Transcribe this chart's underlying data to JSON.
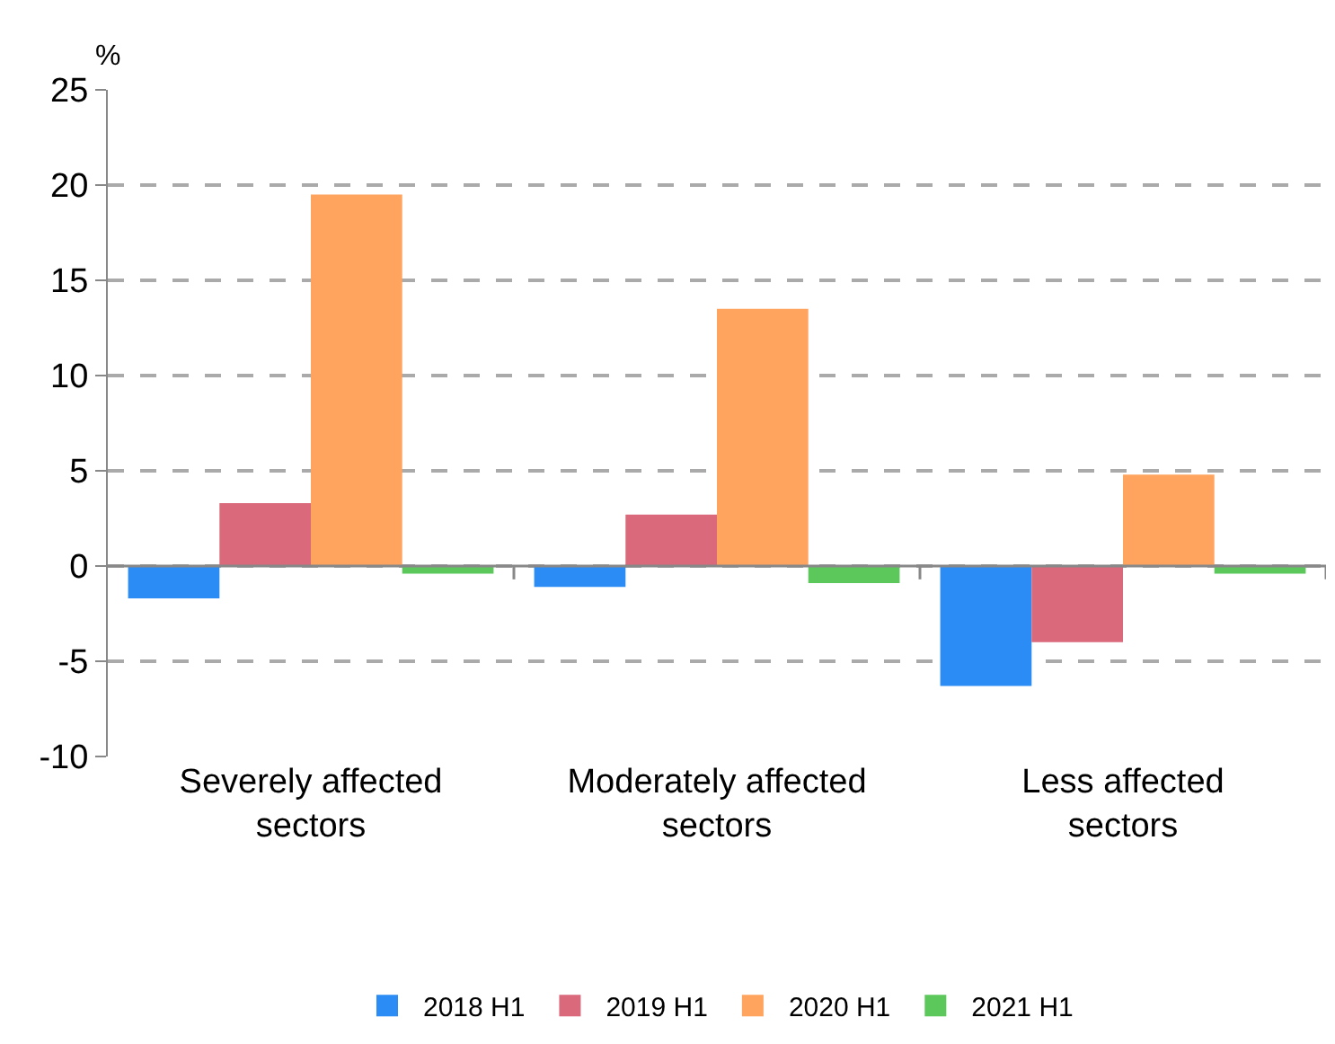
{
  "chart_data": {
    "type": "bar",
    "ylabel": "%",
    "categories": [
      "Severely affected sectors",
      "Moderately affected sectors",
      "Less affected sectors"
    ],
    "series": [
      {
        "name": "2018 H1",
        "color": "#2a8cf4",
        "values": [
          -1.7,
          -1.1,
          -6.3
        ]
      },
      {
        "name": "2019 H1",
        "color": "#d9697b",
        "values": [
          3.3,
          2.7,
          -4.0
        ]
      },
      {
        "name": "2020 H1",
        "color": "#ffa45e",
        "values": [
          19.5,
          13.5,
          4.8
        ]
      },
      {
        "name": "2021 H1",
        "color": "#5cc85c",
        "values": [
          -0.4,
          -0.9,
          -0.4
        ]
      }
    ],
    "ylim": [
      -10,
      25
    ],
    "yticks": [
      -10,
      -5,
      0,
      5,
      10,
      15,
      20,
      25
    ],
    "grid": "y",
    "legend": "bottom"
  }
}
